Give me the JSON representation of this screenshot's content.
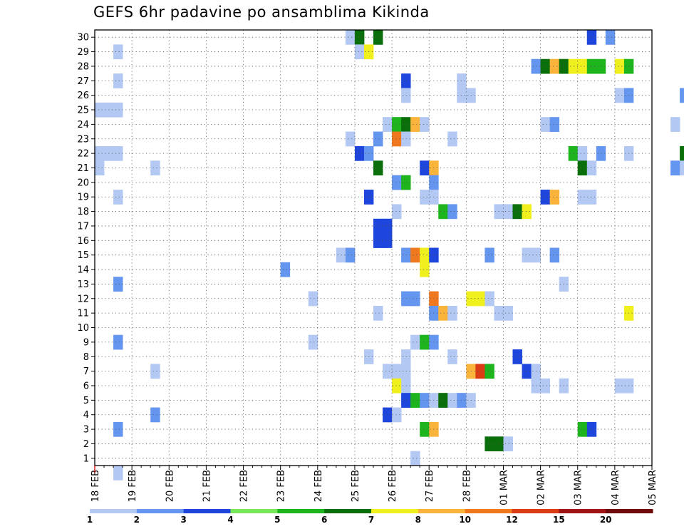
{
  "chart_data": {
    "type": "heatmap",
    "title": "GEFS 6hr padavine po ansamblima Kikinda",
    "xlabel": "",
    "ylabel": "",
    "x_tick_labels": [
      "18 FEB",
      "19 FEB",
      "20 FEB",
      "21 FEB",
      "22 FEB",
      "23 FEB",
      "24 FEB",
      "25 FEB",
      "26 FEB",
      "27 FEB",
      "28 FEB",
      "01 MAR",
      "02 MAR",
      "03 MAR",
      "04 MAR",
      "05 MAR"
    ],
    "y_tick_labels": [
      "1",
      "2",
      "3",
      "4",
      "5",
      "6",
      "7",
      "8",
      "9",
      "10",
      "11",
      "12",
      "13",
      "14",
      "15",
      "16",
      "17",
      "18",
      "19",
      "20",
      "21",
      "22",
      "23",
      "24",
      "25",
      "26",
      "27",
      "28",
      "29",
      "30"
    ],
    "x_range_days": [
      0,
      15
    ],
    "y_range": [
      0.5,
      30.5
    ],
    "grid": true,
    "legend": {
      "placement": "bottom",
      "labels": [
        "1",
        "2",
        "3",
        "4",
        "5",
        "6",
        "7",
        "8",
        "10",
        "12",
        "15",
        "20"
      ],
      "colors": [
        "#b4c8f4",
        "#6496f0",
        "#1e46dc",
        "#78e65a",
        "#1eb41e",
        "#0a6e0a",
        "#f0f01e",
        "#fab43c",
        "#f0781e",
        "#dc3c14",
        "#a01414",
        "#6e0a0a"
      ]
    },
    "levels": [
      1,
      2,
      3,
      4,
      5,
      6,
      7,
      8,
      10,
      12,
      15,
      20
    ],
    "cells": [
      {
        "member": 30,
        "start": "24 FEB 18:00",
        "value": 1
      },
      {
        "member": 30,
        "start": "25 FEB 00:00",
        "value": 6
      },
      {
        "member": 30,
        "start": "25 FEB 12:00",
        "value": 6
      },
      {
        "member": 30,
        "start": "03 MAR 06:00",
        "value": 3
      },
      {
        "member": 30,
        "start": "03 MAR 18:00",
        "value": 2
      },
      {
        "member": 29,
        "start": "18 FEB 12:00",
        "value": 1
      },
      {
        "member": 29,
        "start": "25 FEB 00:00",
        "value": 1
      },
      {
        "member": 29,
        "start": "25 FEB 06:00",
        "value": 7
      },
      {
        "member": 28,
        "start": "01 MAR 18:00",
        "value": 2
      },
      {
        "member": 28,
        "start": "02 MAR 00:00",
        "value": 6
      },
      {
        "member": 28,
        "start": "02 MAR 06:00",
        "value": 8
      },
      {
        "member": 28,
        "start": "02 MAR 12:00",
        "value": 6
      },
      {
        "member": 28,
        "start": "02 MAR 18:00",
        "value": 7
      },
      {
        "member": 28,
        "start": "03 MAR 00:00",
        "value": 7
      },
      {
        "member": 28,
        "start": "03 MAR 06:00",
        "value": 5
      },
      {
        "member": 28,
        "start": "03 MAR 12:00",
        "value": 5
      },
      {
        "member": 28,
        "start": "04 MAR 00:00",
        "value": 7
      },
      {
        "member": 28,
        "start": "04 MAR 06:00",
        "value": 5
      },
      {
        "member": 27,
        "start": "18 FEB 12:00",
        "value": 1
      },
      {
        "member": 27,
        "start": "26 FEB 06:00",
        "value": 3
      },
      {
        "member": 27,
        "start": "27 FEB 18:00",
        "value": 1
      },
      {
        "member": 26,
        "start": "26 FEB 06:00",
        "value": 1
      },
      {
        "member": 26,
        "start": "27 FEB 18:00",
        "value": 1
      },
      {
        "member": 26,
        "start": "28 FEB 00:00",
        "value": 1
      },
      {
        "member": 26,
        "start": "04 MAR 00:00",
        "value": 1
      },
      {
        "member": 26,
        "start": "04 MAR 06:00",
        "value": 2
      },
      {
        "member": 26,
        "start": "05 MAR 18:00",
        "value": 2
      },
      {
        "member": 25,
        "start": "18 FEB 00:00",
        "value": 1
      },
      {
        "member": 25,
        "start": "18 FEB 06:00",
        "value": 1
      },
      {
        "member": 25,
        "start": "18 FEB 12:00",
        "value": 1
      },
      {
        "member": 24,
        "start": "25 FEB 18:00",
        "value": 1
      },
      {
        "member": 24,
        "start": "26 FEB 00:00",
        "value": 5
      },
      {
        "member": 24,
        "start": "26 FEB 06:00",
        "value": 6
      },
      {
        "member": 24,
        "start": "26 FEB 12:00",
        "value": 8
      },
      {
        "member": 24,
        "start": "26 FEB 18:00",
        "value": 1
      },
      {
        "member": 24,
        "start": "02 MAR 00:00",
        "value": 1
      },
      {
        "member": 24,
        "start": "02 MAR 06:00",
        "value": 2
      },
      {
        "member": 24,
        "start": "05 MAR 12:00",
        "value": 1
      },
      {
        "member": 23,
        "start": "24 FEB 18:00",
        "value": 1
      },
      {
        "member": 23,
        "start": "25 FEB 12:00",
        "value": 2
      },
      {
        "member": 23,
        "start": "26 FEB 00:00",
        "value": 10
      },
      {
        "member": 23,
        "start": "26 FEB 06:00",
        "value": 1
      },
      {
        "member": 23,
        "start": "27 FEB 12:00",
        "value": 1
      },
      {
        "member": 22,
        "start": "18 FEB 00:00",
        "value": 1
      },
      {
        "member": 22,
        "start": "18 FEB 06:00",
        "value": 1
      },
      {
        "member": 22,
        "start": "18 FEB 12:00",
        "value": 1
      },
      {
        "member": 22,
        "start": "25 FEB 00:00",
        "value": 3
      },
      {
        "member": 22,
        "start": "25 FEB 06:00",
        "value": 2
      },
      {
        "member": 22,
        "start": "02 MAR 18:00",
        "value": 5
      },
      {
        "member": 22,
        "start": "03 MAR 00:00",
        "value": 1
      },
      {
        "member": 22,
        "start": "03 MAR 12:00",
        "value": 2
      },
      {
        "member": 22,
        "start": "04 MAR 06:00",
        "value": 1
      },
      {
        "member": 22,
        "start": "05 MAR 18:00",
        "value": 6
      },
      {
        "member": 21,
        "start": "18 FEB 00:00",
        "value": 1
      },
      {
        "member": 21,
        "start": "19 FEB 12:00",
        "value": 1
      },
      {
        "member": 21,
        "start": "25 FEB 12:00",
        "value": 6
      },
      {
        "member": 21,
        "start": "26 FEB 18:00",
        "value": 3
      },
      {
        "member": 21,
        "start": "27 FEB 00:00",
        "value": 8
      },
      {
        "member": 21,
        "start": "03 MAR 00:00",
        "value": 6
      },
      {
        "member": 21,
        "start": "03 MAR 06:00",
        "value": 1
      },
      {
        "member": 21,
        "start": "05 MAR 12:00",
        "value": 2
      },
      {
        "member": 21,
        "start": "05 MAR 18:00",
        "value": 1
      },
      {
        "member": 20,
        "start": "26 FEB 00:00",
        "value": 2
      },
      {
        "member": 20,
        "start": "26 FEB 06:00",
        "value": 5
      },
      {
        "member": 20,
        "start": "27 FEB 00:00",
        "value": 2
      },
      {
        "member": 19,
        "start": "18 FEB 12:00",
        "value": 1
      },
      {
        "member": 19,
        "start": "25 FEB 06:00",
        "value": 3
      },
      {
        "member": 19,
        "start": "26 FEB 18:00",
        "value": 1
      },
      {
        "member": 19,
        "start": "27 FEB 00:00",
        "value": 1
      },
      {
        "member": 19,
        "start": "02 MAR 00:00",
        "value": 3
      },
      {
        "member": 19,
        "start": "02 MAR 06:00",
        "value": 8
      },
      {
        "member": 19,
        "start": "03 MAR 00:00",
        "value": 1
      },
      {
        "member": 19,
        "start": "03 MAR 06:00",
        "value": 1
      },
      {
        "member": 18,
        "start": "26 FEB 00:00",
        "value": 1
      },
      {
        "member": 18,
        "start": "27 FEB 06:00",
        "value": 5
      },
      {
        "member": 18,
        "start": "27 FEB 12:00",
        "value": 2
      },
      {
        "member": 18,
        "start": "28 FEB 18:00",
        "value": 1
      },
      {
        "member": 18,
        "start": "01 MAR 00:00",
        "value": 1
      },
      {
        "member": 18,
        "start": "01 MAR 06:00",
        "value": 6
      },
      {
        "member": 18,
        "start": "01 MAR 12:00",
        "value": 7
      },
      {
        "member": 17,
        "start": "25 FEB 12:00",
        "value": 3
      },
      {
        "member": 17,
        "start": "25 FEB 18:00",
        "value": 3
      },
      {
        "member": 16,
        "start": "25 FEB 12:00",
        "value": 3
      },
      {
        "member": 16,
        "start": "25 FEB 18:00",
        "value": 3
      },
      {
        "member": 15,
        "start": "24 FEB 12:00",
        "value": 1
      },
      {
        "member": 15,
        "start": "24 FEB 18:00",
        "value": 2
      },
      {
        "member": 15,
        "start": "26 FEB 06:00",
        "value": 2
      },
      {
        "member": 15,
        "start": "26 FEB 12:00",
        "value": 10
      },
      {
        "member": 15,
        "start": "26 FEB 18:00",
        "value": 7
      },
      {
        "member": 15,
        "start": "27 FEB 00:00",
        "value": 3
      },
      {
        "member": 15,
        "start": "28 FEB 12:00",
        "value": 2
      },
      {
        "member": 15,
        "start": "01 MAR 12:00",
        "value": 1
      },
      {
        "member": 15,
        "start": "01 MAR 18:00",
        "value": 1
      },
      {
        "member": 15,
        "start": "02 MAR 06:00",
        "value": 2
      },
      {
        "member": 14,
        "start": "23 FEB 00:00",
        "value": 2
      },
      {
        "member": 14,
        "start": "26 FEB 18:00",
        "value": 7
      },
      {
        "member": 13,
        "start": "18 FEB 12:00",
        "value": 2
      },
      {
        "member": 13,
        "start": "02 MAR 12:00",
        "value": 1
      },
      {
        "member": 12,
        "start": "23 FEB 18:00",
        "value": 1
      },
      {
        "member": 12,
        "start": "26 FEB 06:00",
        "value": 2
      },
      {
        "member": 12,
        "start": "26 FEB 12:00",
        "value": 2
      },
      {
        "member": 12,
        "start": "27 FEB 00:00",
        "value": 10
      },
      {
        "member": 12,
        "start": "28 FEB 00:00",
        "value": 7
      },
      {
        "member": 12,
        "start": "28 FEB 06:00",
        "value": 7
      },
      {
        "member": 12,
        "start": "28 FEB 12:00",
        "value": 1
      },
      {
        "member": 11,
        "start": "25 FEB 12:00",
        "value": 1
      },
      {
        "member": 11,
        "start": "27 FEB 00:00",
        "value": 2
      },
      {
        "member": 11,
        "start": "27 FEB 06:00",
        "value": 8
      },
      {
        "member": 11,
        "start": "27 FEB 12:00",
        "value": 1
      },
      {
        "member": 11,
        "start": "28 FEB 18:00",
        "value": 1
      },
      {
        "member": 11,
        "start": "01 MAR 00:00",
        "value": 1
      },
      {
        "member": 11,
        "start": "04 MAR 06:00",
        "value": 7
      },
      {
        "member": 9,
        "start": "18 FEB 12:00",
        "value": 2
      },
      {
        "member": 9,
        "start": "23 FEB 18:00",
        "value": 1
      },
      {
        "member": 9,
        "start": "26 FEB 12:00",
        "value": 1
      },
      {
        "member": 9,
        "start": "26 FEB 18:00",
        "value": 5
      },
      {
        "member": 9,
        "start": "27 FEB 00:00",
        "value": 2
      },
      {
        "member": 8,
        "start": "25 FEB 06:00",
        "value": 1
      },
      {
        "member": 8,
        "start": "26 FEB 06:00",
        "value": 1
      },
      {
        "member": 8,
        "start": "27 FEB 12:00",
        "value": 1
      },
      {
        "member": 8,
        "start": "01 MAR 06:00",
        "value": 3
      },
      {
        "member": 7,
        "start": "19 FEB 12:00",
        "value": 1
      },
      {
        "member": 7,
        "start": "25 FEB 18:00",
        "value": 1
      },
      {
        "member": 7,
        "start": "26 FEB 00:00",
        "value": 1
      },
      {
        "member": 7,
        "start": "26 FEB 06:00",
        "value": 1
      },
      {
        "member": 7,
        "start": "28 FEB 00:00",
        "value": 8
      },
      {
        "member": 7,
        "start": "28 FEB 06:00",
        "value": 12
      },
      {
        "member": 7,
        "start": "28 FEB 12:00",
        "value": 5
      },
      {
        "member": 7,
        "start": "01 MAR 12:00",
        "value": 3
      },
      {
        "member": 7,
        "start": "01 MAR 18:00",
        "value": 1
      },
      {
        "member": 6,
        "start": "26 FEB 00:00",
        "value": 7
      },
      {
        "member": 6,
        "start": "26 FEB 06:00",
        "value": 1
      },
      {
        "member": 6,
        "start": "01 MAR 18:00",
        "value": 1
      },
      {
        "member": 6,
        "start": "02 MAR 00:00",
        "value": 1
      },
      {
        "member": 6,
        "start": "02 MAR 12:00",
        "value": 1
      },
      {
        "member": 6,
        "start": "04 MAR 00:00",
        "value": 1
      },
      {
        "member": 6,
        "start": "04 MAR 06:00",
        "value": 1
      },
      {
        "member": 5,
        "start": "26 FEB 06:00",
        "value": 3
      },
      {
        "member": 5,
        "start": "26 FEB 12:00",
        "value": 5
      },
      {
        "member": 5,
        "start": "26 FEB 18:00",
        "value": 2
      },
      {
        "member": 5,
        "start": "27 FEB 00:00",
        "value": 1
      },
      {
        "member": 5,
        "start": "27 FEB 06:00",
        "value": 6
      },
      {
        "member": 5,
        "start": "27 FEB 12:00",
        "value": 1
      },
      {
        "member": 5,
        "start": "27 FEB 18:00",
        "value": 2
      },
      {
        "member": 5,
        "start": "28 FEB 00:00",
        "value": 1
      },
      {
        "member": 4,
        "start": "19 FEB 12:00",
        "value": 2
      },
      {
        "member": 4,
        "start": "25 FEB 18:00",
        "value": 3
      },
      {
        "member": 4,
        "start": "26 FEB 00:00",
        "value": 1
      },
      {
        "member": 3,
        "start": "18 FEB 12:00",
        "value": 2
      },
      {
        "member": 3,
        "start": "26 FEB 18:00",
        "value": 5
      },
      {
        "member": 3,
        "start": "27 FEB 00:00",
        "value": 8
      },
      {
        "member": 3,
        "start": "03 MAR 00:00",
        "value": 5
      },
      {
        "member": 3,
        "start": "03 MAR 06:00",
        "value": 3
      },
      {
        "member": 2,
        "start": "28 FEB 12:00",
        "value": 6
      },
      {
        "member": 2,
        "start": "28 FEB 18:00",
        "value": 6
      },
      {
        "member": 2,
        "start": "01 MAR 00:00",
        "value": 1
      },
      {
        "member": 1,
        "start": "26 FEB 12:00",
        "value": 1
      },
      {
        "member": 0,
        "start": "18 FEB 12:00",
        "value": 1
      }
    ]
  }
}
